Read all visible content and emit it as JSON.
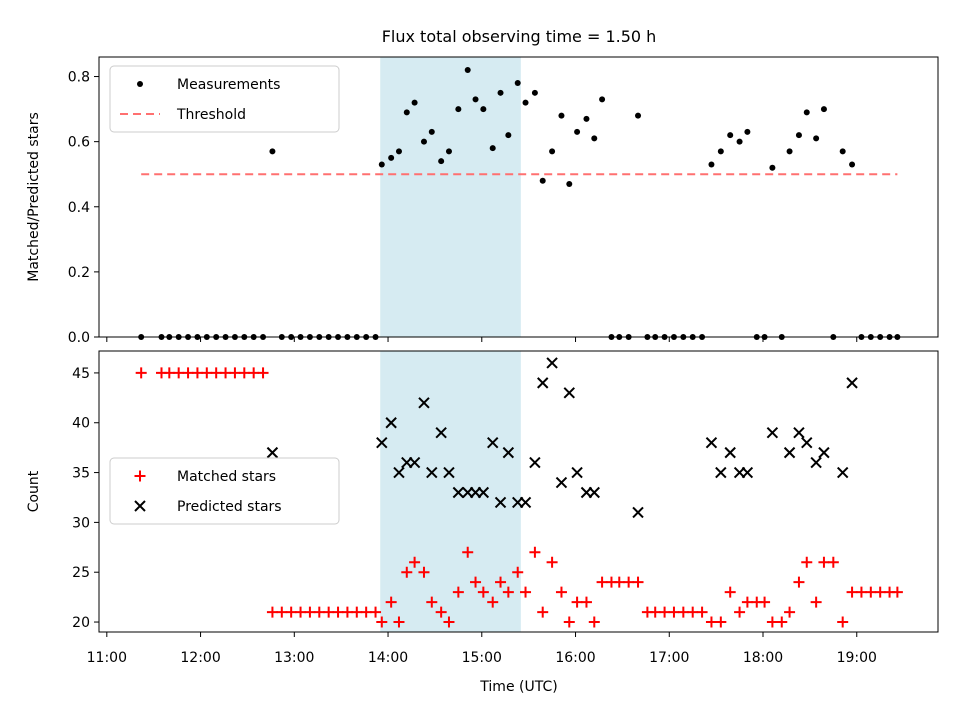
{
  "chart_data": {
    "title": "Flux total observing time = 1.50 h",
    "xlabel": "Time (UTC)",
    "x_ticks": [
      "11:00",
      "12:00",
      "13:00",
      "14:00",
      "15:00",
      "16:00",
      "17:00",
      "18:00",
      "19:00"
    ],
    "x_range": [
      "10:55",
      "19:52"
    ],
    "shaded_interval": [
      "13:55",
      "15:25"
    ],
    "colors": {
      "shade": "#add8e6",
      "threshold": "#ff7070",
      "matched": "#ff0000",
      "predicted": "#000000",
      "measurement": "#000000"
    },
    "panels": [
      {
        "type": "scatter",
        "ylabel": "Matched/Predicted stars",
        "ylim": [
          0,
          0.86
        ],
        "y_ticks": [
          "0.0",
          "0.2",
          "0.4",
          "0.6",
          "0.8"
        ],
        "legend": "upper-left",
        "series": [
          {
            "name": "Measurements",
            "marker": "dot",
            "x": [
              "11:22",
              "11:35",
              "11:40",
              "11:46",
              "11:52",
              "11:58",
              "12:04",
              "12:10",
              "12:16",
              "12:22",
              "12:28",
              "12:34",
              "12:40",
              "12:46",
              "12:52",
              "12:58",
              "13:04",
              "13:10",
              "13:16",
              "13:22",
              "13:28",
              "13:34",
              "13:40",
              "13:46",
              "13:52",
              "13:56",
              "14:02",
              "14:07",
              "14:12",
              "14:17",
              "14:23",
              "14:28",
              "14:34",
              "14:39",
              "14:45",
              "14:51",
              "14:56",
              "15:01",
              "15:07",
              "15:12",
              "15:17",
              "15:23",
              "15:28",
              "15:34",
              "15:39",
              "15:45",
              "15:51",
              "15:56",
              "16:01",
              "16:07",
              "16:12",
              "16:17",
              "16:23",
              "16:28",
              "16:34",
              "16:40",
              "16:46",
              "16:51",
              "16:57",
              "17:03",
              "17:09",
              "17:15",
              "17:21",
              "17:27",
              "17:33",
              "17:39",
              "17:45",
              "17:50",
              "17:56",
              "18:01",
              "18:06",
              "18:12",
              "18:17",
              "18:23",
              "18:28",
              "18:34",
              "18:39",
              "18:45",
              "18:51",
              "18:57",
              "19:03",
              "19:09",
              "19:15",
              "19:21",
              "19:26"
            ],
            "y": [
              0,
              0,
              0,
              0,
              0,
              0,
              0,
              0,
              0,
              0,
              0,
              0,
              0,
              0.57,
              0,
              0,
              0,
              0,
              0,
              0,
              0,
              0,
              0,
              0,
              0,
              0.53,
              0.55,
              0.57,
              0.69,
              0.72,
              0.6,
              0.63,
              0.54,
              0.57,
              0.7,
              0.82,
              0.73,
              0.7,
              0.58,
              0.75,
              0.62,
              0.78,
              0.72,
              0.75,
              0.48,
              0.57,
              0.68,
              0.47,
              0.63,
              0.67,
              0.61,
              0.73,
              0,
              0,
              0,
              0.68,
              0,
              0,
              0,
              0,
              0,
              0,
              0,
              0.53,
              0.57,
              0.62,
              0.6,
              0.63,
              0,
              0,
              0.52,
              0,
              0.57,
              0.62,
              0.69,
              0.61,
              0.7,
              0,
              0.57,
              0.53,
              0,
              0,
              0,
              0,
              0
            ]
          },
          {
            "name": "Threshold",
            "style": "dashed",
            "x": [
              "11:22",
              "19:26"
            ],
            "y": [
              0.5,
              0.5
            ]
          }
        ]
      },
      {
        "type": "scatter",
        "ylabel": "Count",
        "ylim": [
          19,
          47.2
        ],
        "y_ticks": [
          "20",
          "25",
          "30",
          "35",
          "40",
          "45"
        ],
        "legend": "center-left",
        "series": [
          {
            "name": "Matched stars",
            "marker": "plus",
            "x": [
              "11:22",
              "11:35",
              "11:40",
              "11:46",
              "11:52",
              "11:58",
              "12:04",
              "12:10",
              "12:16",
              "12:22",
              "12:28",
              "12:34",
              "12:40",
              "12:46",
              "12:52",
              "12:58",
              "13:04",
              "13:10",
              "13:16",
              "13:22",
              "13:28",
              "13:34",
              "13:40",
              "13:46",
              "13:52",
              "13:56",
              "14:02",
              "14:07",
              "14:12",
              "14:17",
              "14:23",
              "14:28",
              "14:34",
              "14:39",
              "14:45",
              "14:51",
              "14:56",
              "15:01",
              "15:07",
              "15:12",
              "15:17",
              "15:23",
              "15:28",
              "15:34",
              "15:39",
              "15:45",
              "15:51",
              "15:56",
              "16:01",
              "16:07",
              "16:12",
              "16:17",
              "16:23",
              "16:28",
              "16:34",
              "16:40",
              "16:46",
              "16:51",
              "16:57",
              "17:03",
              "17:09",
              "17:15",
              "17:21",
              "17:27",
              "17:33",
              "17:39",
              "17:45",
              "17:50",
              "17:56",
              "18:01",
              "18:06",
              "18:12",
              "18:17",
              "18:23",
              "18:28",
              "18:34",
              "18:39",
              "18:45",
              "18:51",
              "18:57",
              "19:03",
              "19:09",
              "19:15",
              "19:21",
              "19:26"
            ],
            "y": [
              45,
              45,
              45,
              45,
              45,
              45,
              45,
              45,
              45,
              45,
              45,
              45,
              45,
              21,
              21,
              21,
              21,
              21,
              21,
              21,
              21,
              21,
              21,
              21,
              21,
              20,
              22,
              20,
              25,
              26,
              25,
              22,
              21,
              20,
              23,
              27,
              24,
              23,
              22,
              24,
              23,
              25,
              23,
              27,
              21,
              26,
              23,
              20,
              22,
              22,
              20,
              24,
              24,
              24,
              24,
              24,
              21,
              21,
              21,
              21,
              21,
              21,
              21,
              20,
              20,
              23,
              21,
              22,
              22,
              22,
              20,
              20,
              21,
              24,
              26,
              22,
              26,
              26,
              20,
              23,
              23,
              23,
              23,
              23,
              23
            ]
          },
          {
            "name": "Predicted stars",
            "marker": "x",
            "x": [
              "12:46",
              "13:56",
              "14:02",
              "14:07",
              "14:12",
              "14:17",
              "14:23",
              "14:28",
              "14:34",
              "14:39",
              "14:45",
              "14:51",
              "14:56",
              "15:01",
              "15:07",
              "15:12",
              "15:17",
              "15:23",
              "15:28",
              "15:34",
              "15:39",
              "15:45",
              "15:51",
              "15:56",
              "16:01",
              "16:07",
              "16:12",
              "16:40",
              "17:27",
              "17:33",
              "17:39",
              "17:45",
              "17:50",
              "18:06",
              "18:17",
              "18:23",
              "18:28",
              "18:34",
              "18:39",
              "18:51",
              "18:57"
            ],
            "y": [
              37,
              38,
              40,
              35,
              36,
              36,
              42,
              35,
              39,
              35,
              33,
              33,
              33,
              33,
              38,
              32,
              37,
              32,
              32,
              36,
              44,
              46,
              34,
              43,
              35,
              33,
              33,
              31,
              38,
              35,
              37,
              35,
              35,
              39,
              37,
              39,
              38,
              36,
              37,
              35,
              44
            ]
          }
        ]
      }
    ]
  }
}
